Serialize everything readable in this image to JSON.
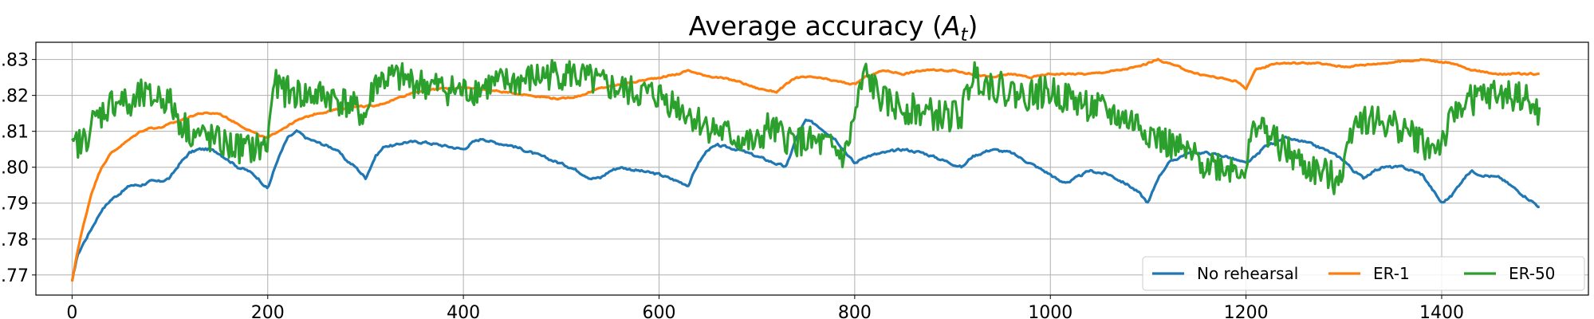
{
  "chart_data": {
    "type": "line",
    "title": "Average accuracy (",
    "title_symbol": "A",
    "title_subscript": "t",
    "title_suffix": ")",
    "xlabel": "",
    "ylabel": "",
    "xlim": [
      -37,
      1550
    ],
    "ylim": [
      0.7644,
      0.8348
    ],
    "xticks": [
      0,
      200,
      400,
      600,
      800,
      1000,
      1200,
      1400
    ],
    "xtick_labels": [
      "0",
      "200",
      "400",
      "600",
      "800",
      "1000",
      "1200",
      "1400"
    ],
    "yticks": [
      0.77,
      0.78,
      0.79,
      0.8,
      0.81,
      0.82,
      0.83
    ],
    "ytick_labels": [
      ".77",
      ".78",
      ".79",
      ".80",
      ".81",
      ".82",
      ".83"
    ],
    "grid": true,
    "legend_position": "bottom-right",
    "series": [
      {
        "name": "No rehearsal",
        "color": "#1f77b4",
        "noise": 0.0006,
        "points": [
          [
            0,
            0.768
          ],
          [
            5,
            0.775
          ],
          [
            10,
            0.778
          ],
          [
            20,
            0.783
          ],
          [
            30,
            0.788
          ],
          [
            40,
            0.791
          ],
          [
            50,
            0.793
          ],
          [
            60,
            0.795
          ],
          [
            70,
            0.795
          ],
          [
            80,
            0.796
          ],
          [
            90,
            0.796
          ],
          [
            100,
            0.797
          ],
          [
            110,
            0.801
          ],
          [
            120,
            0.804
          ],
          [
            130,
            0.805
          ],
          [
            140,
            0.805
          ],
          [
            150,
            0.804
          ],
          [
            160,
            0.802
          ],
          [
            170,
            0.8
          ],
          [
            180,
            0.799
          ],
          [
            190,
            0.797
          ],
          [
            200,
            0.794
          ],
          [
            210,
            0.802
          ],
          [
            220,
            0.808
          ],
          [
            230,
            0.81
          ],
          [
            240,
            0.808
          ],
          [
            250,
            0.807
          ],
          [
            260,
            0.806
          ],
          [
            270,
            0.805
          ],
          [
            280,
            0.802
          ],
          [
            290,
            0.8
          ],
          [
            300,
            0.797
          ],
          [
            310,
            0.803
          ],
          [
            320,
            0.806
          ],
          [
            330,
            0.806
          ],
          [
            340,
            0.807
          ],
          [
            360,
            0.807
          ],
          [
            380,
            0.806
          ],
          [
            400,
            0.805
          ],
          [
            410,
            0.807
          ],
          [
            420,
            0.808
          ],
          [
            430,
            0.807
          ],
          [
            450,
            0.806
          ],
          [
            470,
            0.804
          ],
          [
            490,
            0.802
          ],
          [
            510,
            0.8
          ],
          [
            530,
            0.797
          ],
          [
            540,
            0.797
          ],
          [
            550,
            0.799
          ],
          [
            560,
            0.8
          ],
          [
            580,
            0.799
          ],
          [
            600,
            0.798
          ],
          [
            620,
            0.796
          ],
          [
            630,
            0.795
          ],
          [
            640,
            0.801
          ],
          [
            650,
            0.805
          ],
          [
            660,
            0.806
          ],
          [
            680,
            0.805
          ],
          [
            700,
            0.803
          ],
          [
            720,
            0.801
          ],
          [
            730,
            0.8
          ],
          [
            740,
            0.808
          ],
          [
            750,
            0.813
          ],
          [
            760,
            0.812
          ],
          [
            780,
            0.808
          ],
          [
            800,
            0.801
          ],
          [
            810,
            0.803
          ],
          [
            830,
            0.804
          ],
          [
            850,
            0.805
          ],
          [
            870,
            0.804
          ],
          [
            890,
            0.802
          ],
          [
            910,
            0.8
          ],
          [
            920,
            0.803
          ],
          [
            940,
            0.805
          ],
          [
            960,
            0.804
          ],
          [
            980,
            0.801
          ],
          [
            1000,
            0.798
          ],
          [
            1010,
            0.796
          ],
          [
            1020,
            0.796
          ],
          [
            1040,
            0.799
          ],
          [
            1060,
            0.798
          ],
          [
            1080,
            0.795
          ],
          [
            1090,
            0.793
          ],
          [
            1100,
            0.79
          ],
          [
            1110,
            0.797
          ],
          [
            1120,
            0.801
          ],
          [
            1140,
            0.804
          ],
          [
            1160,
            0.804
          ],
          [
            1180,
            0.803
          ],
          [
            1200,
            0.801
          ],
          [
            1210,
            0.803
          ],
          [
            1220,
            0.806
          ],
          [
            1240,
            0.808
          ],
          [
            1260,
            0.807
          ],
          [
            1280,
            0.805
          ],
          [
            1300,
            0.802
          ],
          [
            1310,
            0.799
          ],
          [
            1320,
            0.797
          ],
          [
            1330,
            0.799
          ],
          [
            1340,
            0.8
          ],
          [
            1360,
            0.8
          ],
          [
            1380,
            0.798
          ],
          [
            1400,
            0.79
          ],
          [
            1410,
            0.792
          ],
          [
            1420,
            0.796
          ],
          [
            1430,
            0.799
          ],
          [
            1440,
            0.798
          ],
          [
            1460,
            0.797
          ],
          [
            1480,
            0.793
          ],
          [
            1500,
            0.789
          ]
        ]
      },
      {
        "name": "ER-1",
        "color": "#ff7f0e",
        "noise": 0.0004,
        "points": [
          [
            0,
            0.768
          ],
          [
            5,
            0.776
          ],
          [
            10,
            0.782
          ],
          [
            20,
            0.793
          ],
          [
            30,
            0.8
          ],
          [
            40,
            0.804
          ],
          [
            50,
            0.806
          ],
          [
            60,
            0.808
          ],
          [
            70,
            0.81
          ],
          [
            80,
            0.811
          ],
          [
            90,
            0.811
          ],
          [
            100,
            0.812
          ],
          [
            110,
            0.813
          ],
          [
            120,
            0.814
          ],
          [
            130,
            0.815
          ],
          [
            150,
            0.815
          ],
          [
            170,
            0.812
          ],
          [
            190,
            0.809
          ],
          [
            200,
            0.808
          ],
          [
            210,
            0.81
          ],
          [
            230,
            0.813
          ],
          [
            250,
            0.815
          ],
          [
            270,
            0.816
          ],
          [
            290,
            0.817
          ],
          [
            310,
            0.817
          ],
          [
            330,
            0.819
          ],
          [
            350,
            0.821
          ],
          [
            380,
            0.822
          ],
          [
            410,
            0.822
          ],
          [
            440,
            0.821
          ],
          [
            470,
            0.82
          ],
          [
            500,
            0.819
          ],
          [
            520,
            0.82
          ],
          [
            540,
            0.822
          ],
          [
            560,
            0.823
          ],
          [
            580,
            0.824
          ],
          [
            600,
            0.825
          ],
          [
            620,
            0.826
          ],
          [
            630,
            0.827
          ],
          [
            640,
            0.826
          ],
          [
            660,
            0.825
          ],
          [
            680,
            0.824
          ],
          [
            700,
            0.822
          ],
          [
            720,
            0.821
          ],
          [
            730,
            0.823
          ],
          [
            740,
            0.825
          ],
          [
            760,
            0.825
          ],
          [
            780,
            0.824
          ],
          [
            800,
            0.823
          ],
          [
            810,
            0.825
          ],
          [
            830,
            0.827
          ],
          [
            850,
            0.826
          ],
          [
            870,
            0.827
          ],
          [
            900,
            0.827
          ],
          [
            920,
            0.826
          ],
          [
            940,
            0.825
          ],
          [
            960,
            0.826
          ],
          [
            980,
            0.825
          ],
          [
            1000,
            0.826
          ],
          [
            1040,
            0.826
          ],
          [
            1070,
            0.827
          ],
          [
            1090,
            0.828
          ],
          [
            1110,
            0.83
          ],
          [
            1130,
            0.828
          ],
          [
            1150,
            0.826
          ],
          [
            1170,
            0.825
          ],
          [
            1190,
            0.824
          ],
          [
            1200,
            0.822
          ],
          [
            1210,
            0.827
          ],
          [
            1230,
            0.829
          ],
          [
            1250,
            0.829
          ],
          [
            1270,
            0.829
          ],
          [
            1300,
            0.828
          ],
          [
            1340,
            0.829
          ],
          [
            1380,
            0.83
          ],
          [
            1410,
            0.829
          ],
          [
            1430,
            0.827
          ],
          [
            1460,
            0.826
          ],
          [
            1500,
            0.826
          ]
        ]
      },
      {
        "name": "ER-50",
        "color": "#2ca02c",
        "noise": 0.0045,
        "points": [
          [
            0,
            0.804
          ],
          [
            5,
            0.807
          ],
          [
            10,
            0.806
          ],
          [
            20,
            0.812
          ],
          [
            30,
            0.815
          ],
          [
            40,
            0.818
          ],
          [
            50,
            0.819
          ],
          [
            60,
            0.816
          ],
          [
            70,
            0.82
          ],
          [
            80,
            0.819
          ],
          [
            90,
            0.82
          ],
          [
            100,
            0.818
          ],
          [
            110,
            0.813
          ],
          [
            120,
            0.81
          ],
          [
            130,
            0.809
          ],
          [
            140,
            0.808
          ],
          [
            160,
            0.806
          ],
          [
            180,
            0.805
          ],
          [
            200,
            0.806
          ],
          [
            205,
            0.823
          ],
          [
            220,
            0.821
          ],
          [
            240,
            0.82
          ],
          [
            260,
            0.82
          ],
          [
            280,
            0.818
          ],
          [
            300,
            0.814
          ],
          [
            310,
            0.824
          ],
          [
            330,
            0.825
          ],
          [
            360,
            0.823
          ],
          [
            400,
            0.821
          ],
          [
            430,
            0.823
          ],
          [
            460,
            0.824
          ],
          [
            490,
            0.826
          ],
          [
            510,
            0.826
          ],
          [
            540,
            0.823
          ],
          [
            570,
            0.821
          ],
          [
            600,
            0.82
          ],
          [
            620,
            0.817
          ],
          [
            640,
            0.813
          ],
          [
            660,
            0.81
          ],
          [
            680,
            0.808
          ],
          [
            700,
            0.806
          ],
          [
            710,
            0.811
          ],
          [
            730,
            0.808
          ],
          [
            750,
            0.807
          ],
          [
            770,
            0.806
          ],
          [
            790,
            0.803
          ],
          [
            800,
            0.814
          ],
          [
            810,
            0.826
          ],
          [
            830,
            0.818
          ],
          [
            860,
            0.816
          ],
          [
            890,
            0.814
          ],
          [
            910,
            0.815
          ],
          [
            920,
            0.826
          ],
          [
            940,
            0.823
          ],
          [
            970,
            0.82
          ],
          [
            1000,
            0.821
          ],
          [
            1030,
            0.818
          ],
          [
            1060,
            0.815
          ],
          [
            1090,
            0.812
          ],
          [
            1110,
            0.808
          ],
          [
            1130,
            0.805
          ],
          [
            1150,
            0.802
          ],
          [
            1180,
            0.8
          ],
          [
            1200,
            0.8
          ],
          [
            1210,
            0.813
          ],
          [
            1230,
            0.807
          ],
          [
            1260,
            0.8
          ],
          [
            1290,
            0.797
          ],
          [
            1300,
            0.8
          ],
          [
            1310,
            0.814
          ],
          [
            1330,
            0.813
          ],
          [
            1360,
            0.811
          ],
          [
            1390,
            0.805
          ],
          [
            1400,
            0.807
          ],
          [
            1420,
            0.818
          ],
          [
            1450,
            0.82
          ],
          [
            1480,
            0.82
          ],
          [
            1500,
            0.815
          ]
        ]
      }
    ]
  }
}
